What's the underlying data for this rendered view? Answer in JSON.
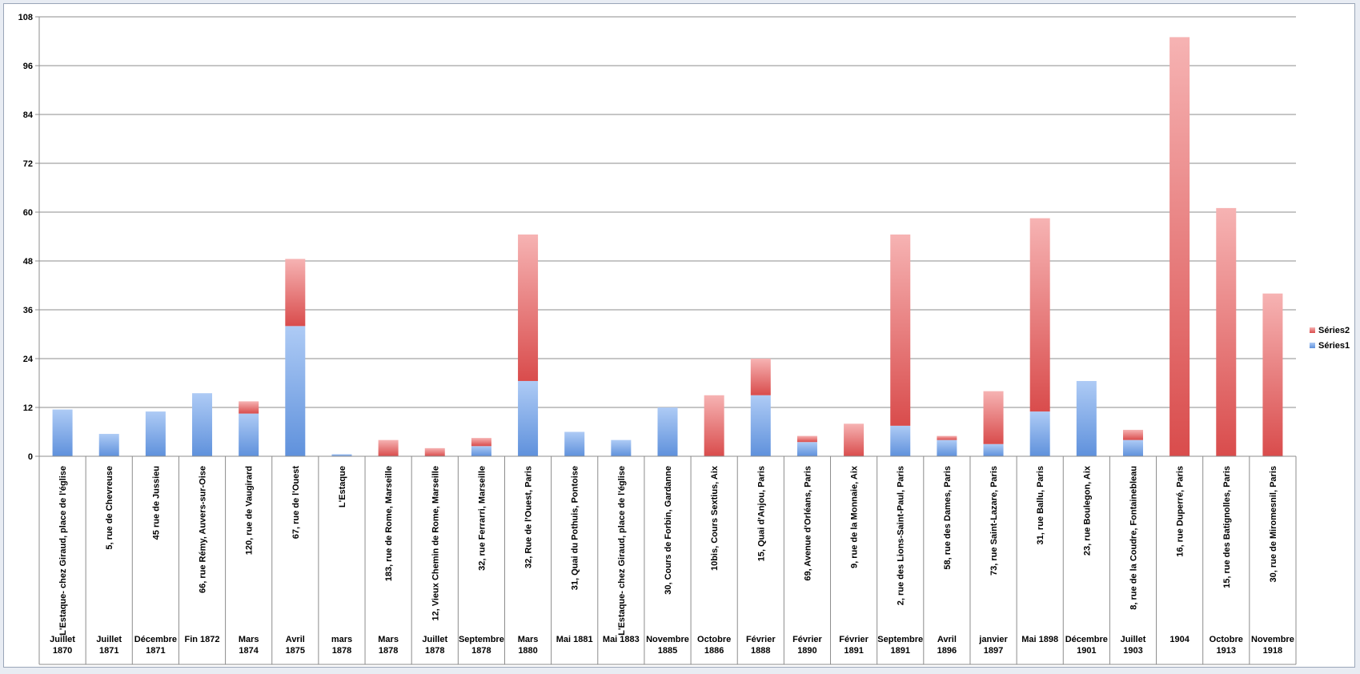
{
  "chart_data": {
    "type": "bar",
    "stacked": true,
    "title": "",
    "xlabel": "",
    "ylabel": "",
    "ylim": [
      0,
      108
    ],
    "yticks": [
      0,
      12,
      24,
      36,
      48,
      60,
      72,
      84,
      96,
      108
    ],
    "grid": true,
    "legend_position": "right",
    "categories": [
      {
        "address": "L'Estaque- chez Giraud, place de l'église",
        "date": "Juillet 1870"
      },
      {
        "address": "5, rue de Chevreuse",
        "date": "Juillet 1871"
      },
      {
        "address": "45 rue de Jussieu",
        "date": "Décembre 1871"
      },
      {
        "address": "66, rue Rémy, Auvers-sur-Oise",
        "date": "Fin 1872"
      },
      {
        "address": "120, rue de Vaugirard",
        "date": "Mars 1874"
      },
      {
        "address": "67, rue de l'Ouest",
        "date": "Avril 1875"
      },
      {
        "address": "L'Estaque",
        "date": "mars 1878"
      },
      {
        "address": "183, rue de Rome, Marseille",
        "date": "Mars 1878"
      },
      {
        "address": "12, Vieux Chemin de Rome, Marseille",
        "date": "Juillet 1878"
      },
      {
        "address": "32, rue Ferrarri, Marseille",
        "date": "Septembre 1878"
      },
      {
        "address": "32, Rue de l'Ouest, Paris",
        "date": "Mars 1880"
      },
      {
        "address": "31, Quai du Pothuis, Pontoise",
        "date": "Mai 1881"
      },
      {
        "address": "L'Estaque- chez Giraud, place de l'église",
        "date": "Mai 1883"
      },
      {
        "address": "30, Cours de Forbin, Gardanne",
        "date": "Novembre 1885"
      },
      {
        "address": "10bis, Cours Sextius, Aix",
        "date": "Octobre 1886"
      },
      {
        "address": "15, Quai d'Anjou, Paris",
        "date": "Février 1888"
      },
      {
        "address": "69, Avenue d'Orléans, Paris",
        "date": "Février 1890"
      },
      {
        "address": "9, rue de la Monnaie, Aix",
        "date": "Février 1891"
      },
      {
        "address": "2, rue des Lions-Saint-Paul, Paris",
        "date": "Septembre 1891"
      },
      {
        "address": "58, rue des Dames, Paris",
        "date": "Avril 1896"
      },
      {
        "address": "73, rue Saint-Lazare, Paris",
        "date": "janvier 1897"
      },
      {
        "address": "31, rue Ballu, Paris",
        "date": "Mai 1898"
      },
      {
        "address": "23, rue Boulegon, Aix",
        "date": "Décembre 1901"
      },
      {
        "address": "8, rue de la Coudre, Fontainebleau",
        "date": "Juillet 1903"
      },
      {
        "address": "16, rue Duperré, Paris",
        "date": "1904"
      },
      {
        "address": "15, rue des Batignolles, Paris",
        "date": "Octobre 1913"
      },
      {
        "address": "30, rue de Miromesnil, Paris",
        "date": "Novembre 1918"
      }
    ],
    "series": [
      {
        "name": "Séries1",
        "color": "#6b9be0",
        "values": [
          11.5,
          5.5,
          11,
          15.5,
          10.5,
          32,
          0.5,
          0,
          0,
          2.5,
          18.5,
          6,
          4,
          12,
          0,
          15,
          3.5,
          0,
          7.5,
          4,
          3,
          11,
          18.5,
          4,
          0,
          0,
          0
        ]
      },
      {
        "name": "Séries2",
        "color": "#e06060",
        "values": [
          0,
          0,
          0,
          0,
          3,
          16.5,
          0,
          4,
          2,
          2,
          36,
          0,
          0,
          0,
          15,
          9,
          1.5,
          8,
          47,
          1,
          13,
          47.5,
          0,
          2.5,
          103,
          61,
          40
        ]
      }
    ]
  }
}
